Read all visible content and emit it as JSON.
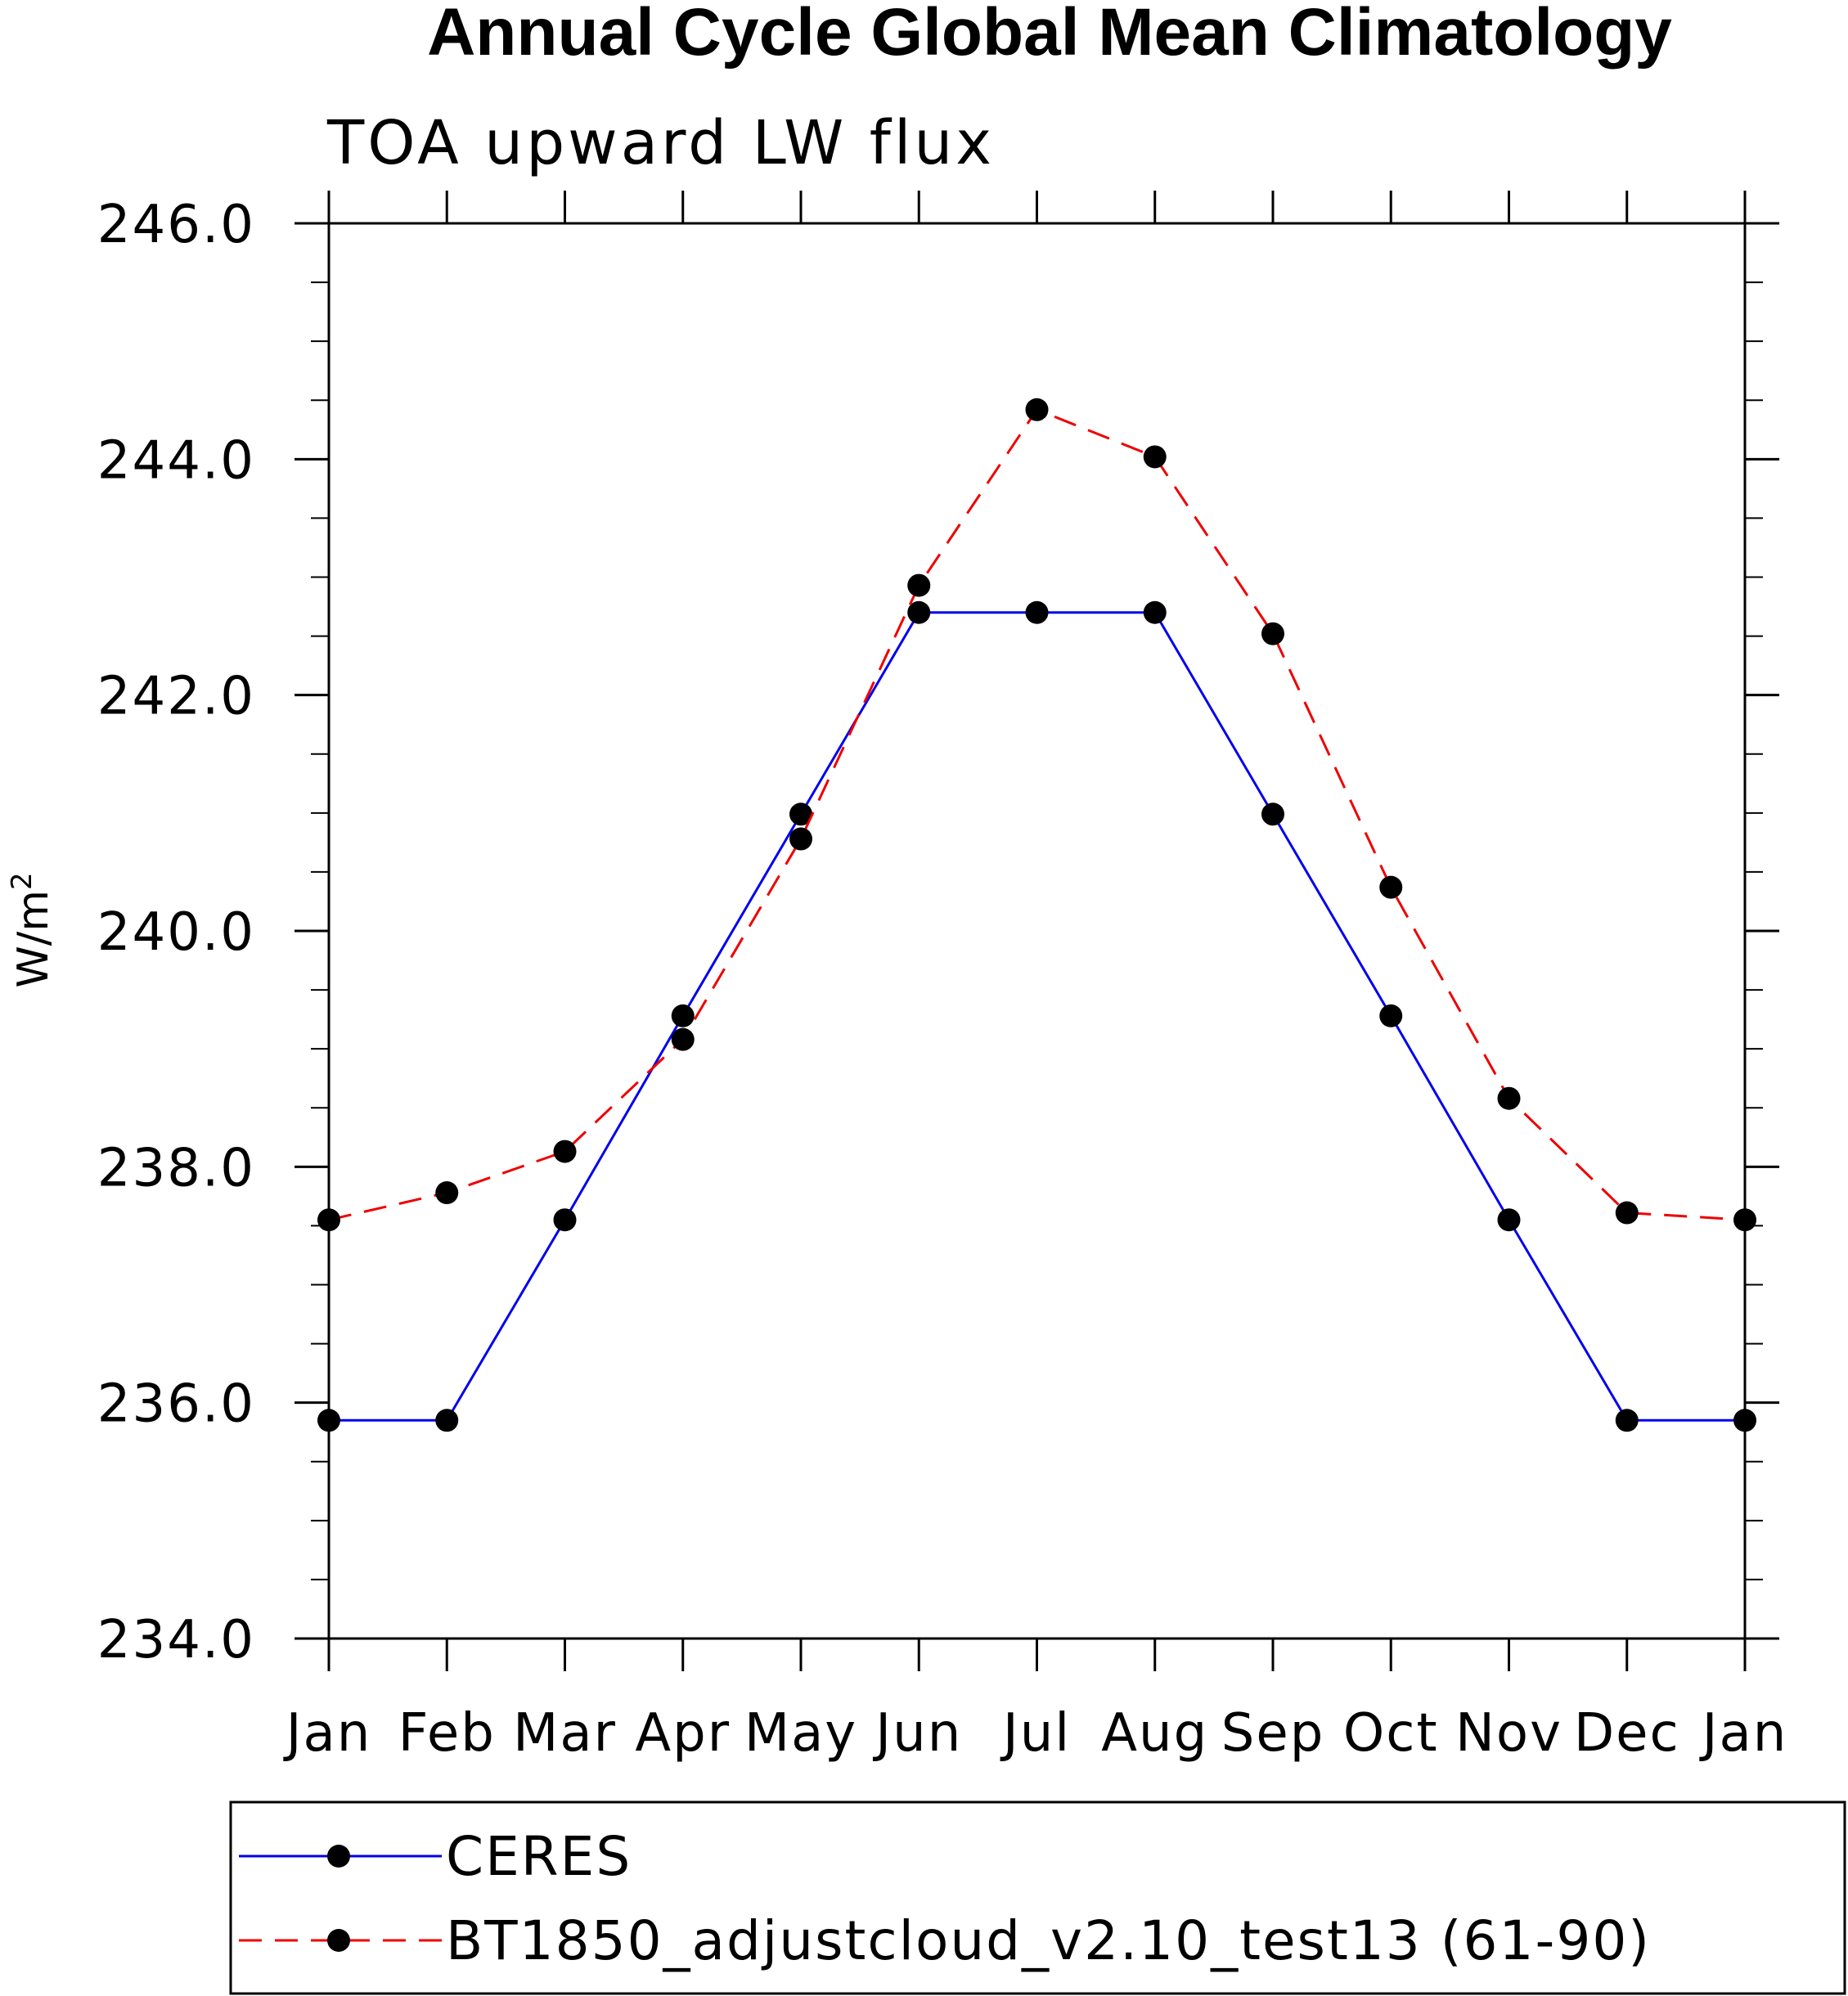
{
  "chart_data": {
    "type": "line",
    "title": "Annual Cycle Global Mean Climatology",
    "subtitle": "TOA upward LW flux",
    "xlabel": "",
    "ylabel": "W/m",
    "ylabel_superscript": "2",
    "categories": [
      "Jan",
      "Feb",
      "Mar",
      "Apr",
      "May",
      "Jun",
      "Jul",
      "Aug",
      "Sep",
      "Oct",
      "Nov",
      "Dec",
      "Jan"
    ],
    "ylim": [
      234.0,
      246.0
    ],
    "yticks": [
      {
        "value": 234.0,
        "label": "234.0"
      },
      {
        "value": 236.0,
        "label": "236.0"
      },
      {
        "value": 238.0,
        "label": "238.0"
      },
      {
        "value": 240.0,
        "label": "240.0"
      },
      {
        "value": 242.0,
        "label": "242.0"
      },
      {
        "value": 244.0,
        "label": "244.0"
      },
      {
        "value": 246.0,
        "label": "246.0"
      }
    ],
    "yminor_step": 0.5,
    "series": [
      {
        "name": "CERES",
        "color": "#0000ee",
        "dash": "solid",
        "values": [
          235.85,
          235.85,
          237.55,
          239.28,
          240.99,
          242.7,
          242.7,
          242.7,
          240.99,
          239.28,
          237.55,
          235.85,
          235.85
        ]
      },
      {
        "name": "BT1850_adjustcloud_v2.10_test13 (61-90)",
        "color": "#ee0000",
        "dash": "dashed",
        "values": [
          237.55,
          237.78,
          238.13,
          239.08,
          240.78,
          242.93,
          244.42,
          244.02,
          242.52,
          240.37,
          238.58,
          237.61,
          237.55
        ]
      }
    ],
    "marker_color": "#000000",
    "legend_position": "bottom"
  }
}
